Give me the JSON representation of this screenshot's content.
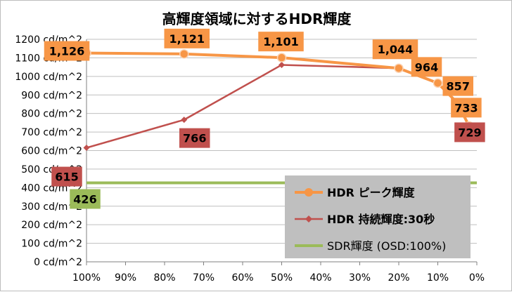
{
  "chart_data": {
    "type": "line",
    "title": "高輝度領域に対するHDR輝度",
    "xlabel": "",
    "ylabel": "",
    "xlim": [
      100,
      0
    ],
    "ylim": [
      0,
      1200
    ],
    "x_reversed": true,
    "x_ticks": [
      100,
      90,
      80,
      70,
      60,
      50,
      40,
      30,
      20,
      10,
      0
    ],
    "x_tick_labels": [
      "100%",
      "90%",
      "80%",
      "70%",
      "60%",
      "50%",
      "40%",
      "30%",
      "20%",
      "10%",
      "0%"
    ],
    "y_ticks": [
      0,
      100,
      200,
      300,
      400,
      500,
      600,
      700,
      800,
      900,
      1000,
      1100,
      1200
    ],
    "y_tick_labels": [
      "0 cd/m^2",
      "100 cd/m^2",
      "200 cd/m^2",
      "300 cd/m^2",
      "400 cd/m^2",
      "500 cd/m^2",
      "600 cd/m^2",
      "700 cd/m^2",
      "800 cd/m^2",
      "900 cd/m^2",
      "1000 cd/m^2",
      "1100 cd/m^2",
      "1200 cd/m^2"
    ],
    "grid": {
      "horizontal": true,
      "vertical": false
    },
    "legend_position": "bottom-right",
    "series": [
      {
        "name": "HDR ピーク輝度",
        "color": "#f79646",
        "marker": "circle",
        "label_bg": "#f79646",
        "points": [
          {
            "x": 100,
            "y": 1126,
            "label": "1,126"
          },
          {
            "x": 75,
            "y": 1121,
            "label": "1,121"
          },
          {
            "x": 50,
            "y": 1101,
            "label": "1,101"
          },
          {
            "x": 20,
            "y": 1044,
            "label": "1,044"
          },
          {
            "x": 10,
            "y": 964,
            "label": "964"
          },
          {
            "x": 5,
            "y": 857,
            "label": "857"
          },
          {
            "x": 2,
            "y": 733,
            "label": "733"
          }
        ]
      },
      {
        "name": "HDR 持続輝度:30秒",
        "color": "#c0504d",
        "marker": "diamond",
        "label_bg": "#c0504d",
        "points": [
          {
            "x": 100,
            "y": 615,
            "label": "615"
          },
          {
            "x": 75,
            "y": 766,
            "label": "766"
          },
          {
            "x": 50,
            "y": 1062,
            "label": ""
          },
          {
            "x": 20,
            "y": 1044,
            "label": ""
          },
          {
            "x": 10,
            "y": 964,
            "label": ""
          },
          {
            "x": 5,
            "y": 857,
            "label": ""
          },
          {
            "x": 2,
            "y": 729,
            "label": "729"
          }
        ]
      },
      {
        "name": "SDR輝度 (OSD:100%)",
        "color": "#9bbb59",
        "marker": "none",
        "label_bg": "#9bbb59",
        "points": [
          {
            "x": 100,
            "y": 426,
            "label": "426"
          },
          {
            "x": 0,
            "y": 426,
            "label": ""
          }
        ]
      }
    ]
  },
  "legend": {
    "background": "#bfbfbf"
  }
}
